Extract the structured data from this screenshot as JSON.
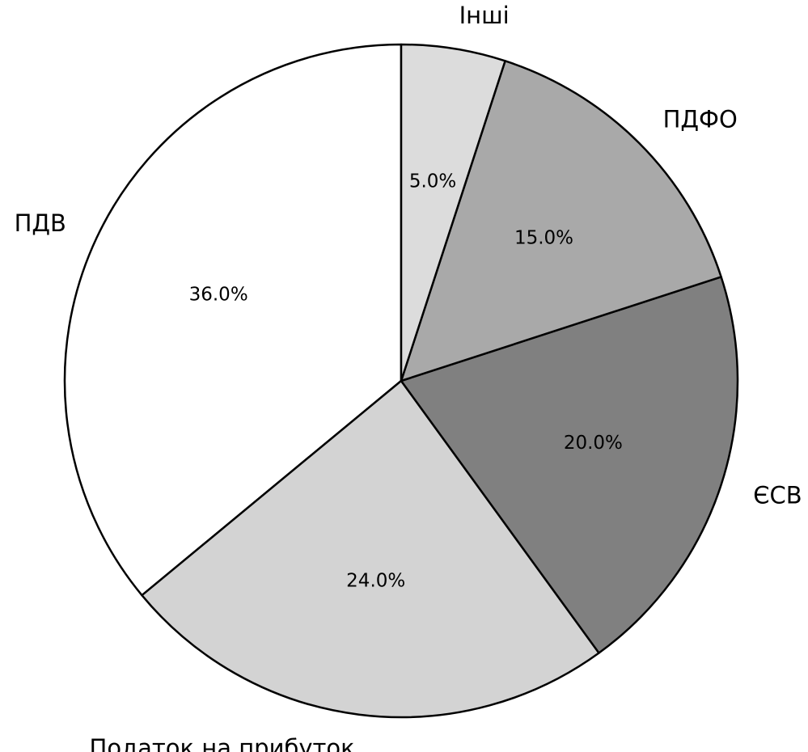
{
  "chart_data": {
    "type": "pie",
    "title": "",
    "slices": [
      {
        "label": "ПДВ",
        "value": 36.0,
        "value_label": "36.0%",
        "color": "#ffffff"
      },
      {
        "label": "Податок на прибуток",
        "value": 24.0,
        "value_label": "24.0%",
        "color": "#d3d3d3"
      },
      {
        "label": "ЄСВ",
        "value": 20.0,
        "value_label": "20.0%",
        "color": "#808080"
      },
      {
        "label": "ПДФО",
        "value": 15.0,
        "value_label": "15.0%",
        "color": "#a9a9a9"
      },
      {
        "label": "Інші",
        "value": 5.0,
        "value_label": "5.0%",
        "color": "#dcdcdc"
      }
    ],
    "start_angle_deg": 90,
    "direction": "counterclockwise"
  }
}
